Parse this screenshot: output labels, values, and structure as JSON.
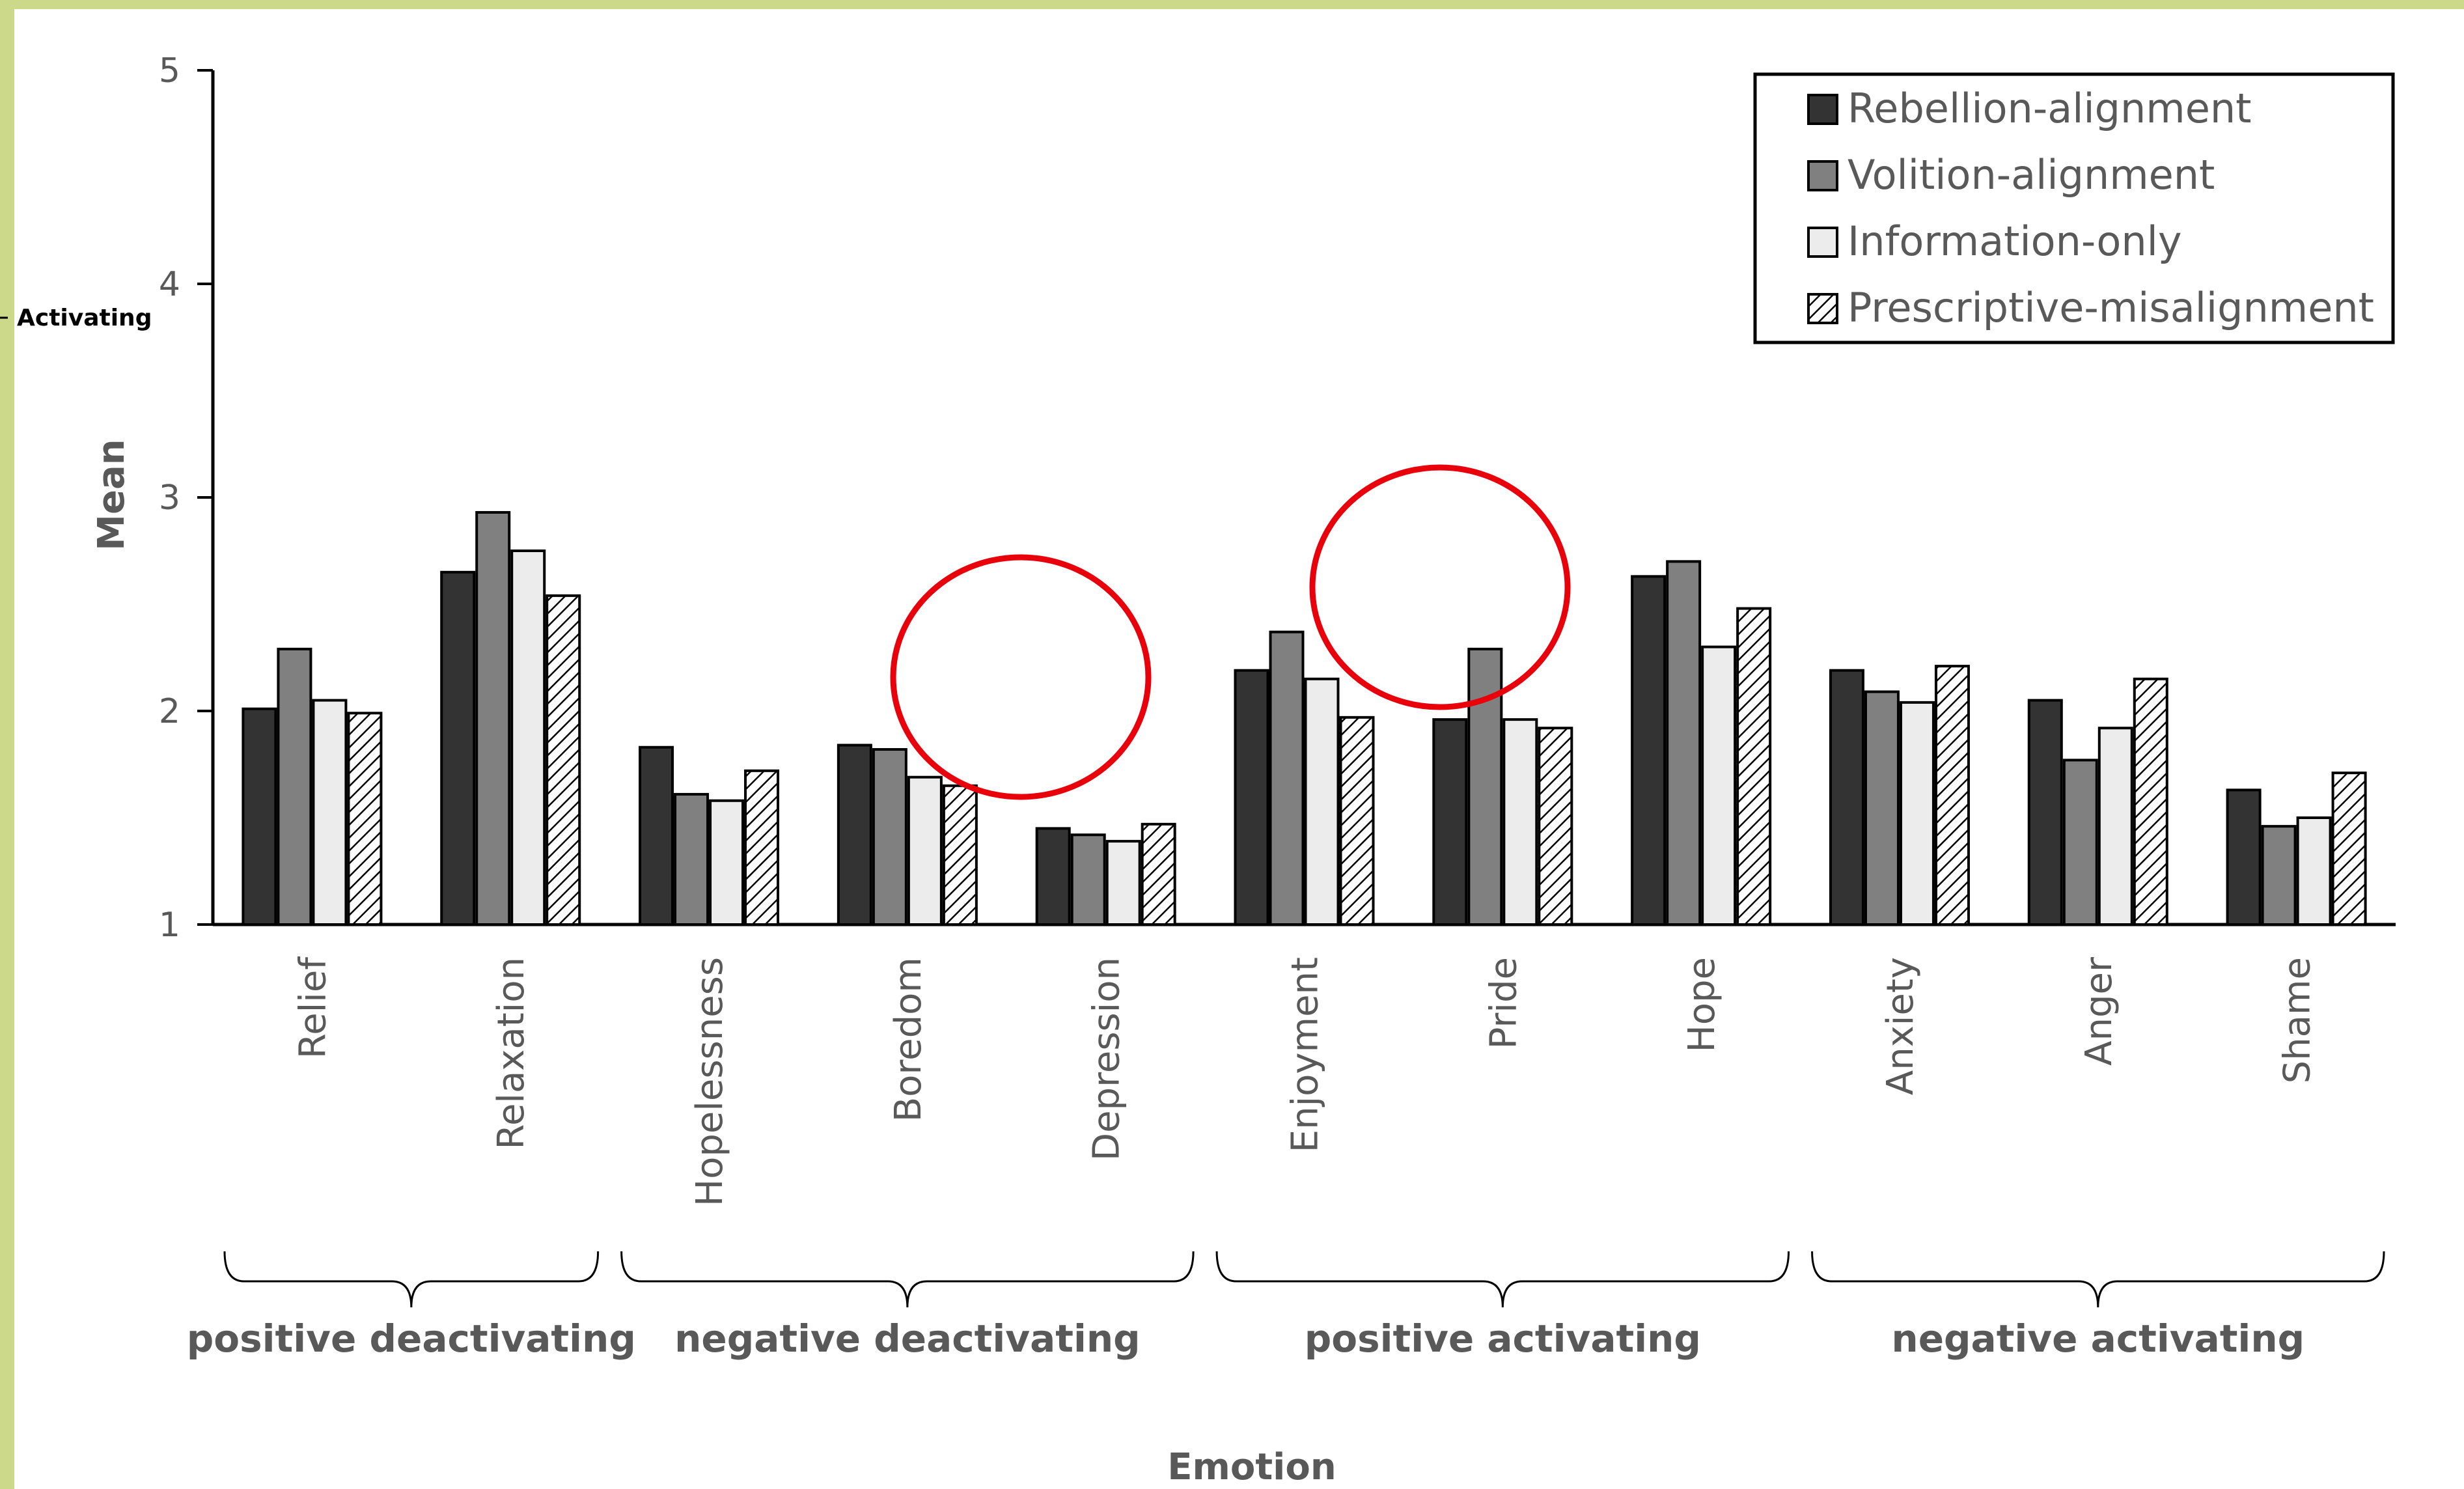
{
  "colors": {
    "frame": "#cdd98a",
    "axis": "#000000",
    "bar_rebellion": "#333333",
    "bar_volition": "#808080",
    "bar_information": "#ececec",
    "annotation_circle": "#e8000b"
  },
  "side_label": "Activating",
  "chart_data": {
    "type": "bar",
    "title": "",
    "ylabel": "Mean",
    "xlabel": "Emotion",
    "ylim": [
      1,
      5
    ],
    "yticks": [
      "1",
      "2",
      "3",
      "4",
      "5"
    ],
    "grid": false,
    "legend_position": "top-right",
    "categories": [
      "Relief",
      "Relaxation",
      "Hopelessness",
      "Boredom",
      "Depression",
      "Enjoyment",
      "Pride",
      "Hope",
      "Anxiety",
      "Anger",
      "Shame"
    ],
    "series": [
      {
        "name": "Rebellion-alignment",
        "pattern": "solid-dark",
        "values": [
          2.01,
          2.65,
          1.83,
          1.84,
          1.45,
          2.19,
          1.96,
          2.63,
          2.19,
          2.05,
          1.63
        ]
      },
      {
        "name": "Volition-alignment",
        "pattern": "solid-gray",
        "values": [
          2.29,
          2.93,
          1.61,
          1.82,
          1.42,
          2.37,
          2.29,
          2.7,
          2.09,
          1.77,
          1.46
        ]
      },
      {
        "name": "Information-only",
        "pattern": "solid-light",
        "values": [
          2.05,
          2.75,
          1.58,
          1.69,
          1.39,
          2.15,
          1.96,
          2.3,
          2.04,
          1.92,
          1.5
        ]
      },
      {
        "name": "Prescriptive-misalignment",
        "pattern": "hatched",
        "values": [
          1.99,
          2.54,
          1.72,
          1.65,
          1.47,
          1.97,
          1.92,
          2.48,
          2.21,
          2.15,
          1.71
        ]
      }
    ],
    "groups": [
      {
        "label": "positive deactivating",
        "categories": [
          "Relief",
          "Relaxation"
        ]
      },
      {
        "label": "negative deactivating",
        "categories": [
          "Hopelessness",
          "Boredom",
          "Depression"
        ]
      },
      {
        "label": "positive activating",
        "categories": [
          "Enjoyment",
          "Pride",
          "Hope"
        ]
      },
      {
        "label": "negative activating",
        "categories": [
          "Anxiety",
          "Anger",
          "Shame"
        ]
      }
    ],
    "annotations": [
      {
        "type": "circle",
        "near_category": "Boredom",
        "color": "red"
      },
      {
        "type": "circle",
        "near_category": "Pride",
        "color": "red"
      }
    ]
  }
}
